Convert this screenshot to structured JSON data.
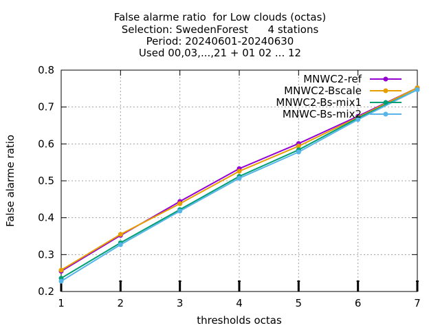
{
  "chart_data": {
    "type": "line",
    "title_lines": [
      "False alarme ratio  for Low clouds (octas)",
      "Selection: SwedenForest      4 stations",
      "Period: 20240601-20240630",
      "Used 00,03,...,21 + 01 02 ... 12"
    ],
    "xlabel": "thresholds octas",
    "ylabel": "False alarme ratio",
    "x": [
      1,
      2,
      3,
      4,
      5,
      6,
      7
    ],
    "xlim": [
      1,
      7
    ],
    "ylim": [
      0.2,
      0.8
    ],
    "xticks": [
      "1",
      "2",
      "3",
      "4",
      "5",
      "6",
      "7"
    ],
    "yticks": [
      "0.2",
      "0.3",
      "0.4",
      "0.5",
      "0.6",
      "0.7",
      "0.8"
    ],
    "grid": true,
    "legend_position": "top-right",
    "series": [
      {
        "name": "MNWC2-ref",
        "color": "#9400d3",
        "values": [
          0.255,
          0.352,
          0.444,
          0.533,
          0.601,
          0.675,
          0.752
        ]
      },
      {
        "name": "MNWC2-Bscale",
        "color": "#e69f00",
        "values": [
          0.258,
          0.355,
          0.438,
          0.526,
          0.594,
          0.672,
          0.752
        ]
      },
      {
        "name": "MNWC2-Bs-mix1",
        "color": "#009e73",
        "values": [
          0.236,
          0.332,
          0.422,
          0.512,
          0.584,
          0.67,
          0.747
        ]
      },
      {
        "name": "MNWC-Bs-mix2",
        "color": "#56b4e9",
        "values": [
          0.228,
          0.327,
          0.418,
          0.507,
          0.578,
          0.666,
          0.747
        ]
      }
    ]
  }
}
